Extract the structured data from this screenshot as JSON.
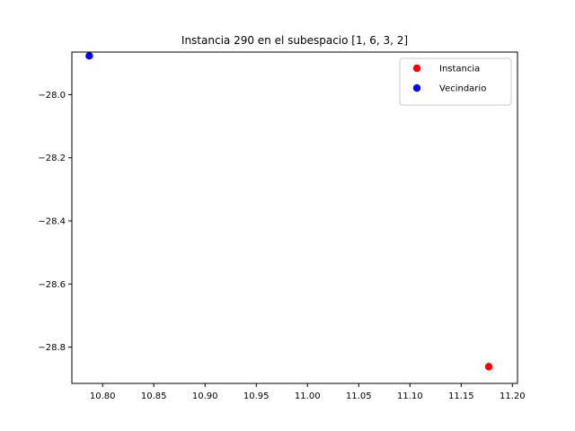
{
  "chart_data": {
    "type": "scatter",
    "title": "Instancia 290 en el subespacio [1, 6, 3, 2]",
    "xlabel": "",
    "ylabel": "",
    "xlim": [
      10.77,
      11.205
    ],
    "ylim": [
      -28.915,
      -27.865
    ],
    "xticks": [
      10.8,
      10.85,
      10.9,
      10.95,
      11.0,
      11.05,
      11.1,
      11.15,
      11.2
    ],
    "xtick_labels": [
      "10.80",
      "10.85",
      "10.90",
      "10.95",
      "11.00",
      "11.05",
      "11.10",
      "11.15",
      "11.20"
    ],
    "yticks": [
      -28.0,
      -28.2,
      -28.4,
      -28.6,
      -28.8
    ],
    "ytick_labels": [
      "−28.0",
      "−28.2",
      "−28.4",
      "−28.6",
      "−28.8"
    ],
    "grid": false,
    "legend_position": "top-right",
    "series": [
      {
        "name": "Instancia",
        "color": "#ff0000",
        "points": [
          {
            "x": 11.177,
            "y": -28.862
          }
        ]
      },
      {
        "name": "Vecindario",
        "color": "#0000ff",
        "points": [
          {
            "x": 10.787,
            "y": -27.877
          }
        ]
      }
    ]
  }
}
